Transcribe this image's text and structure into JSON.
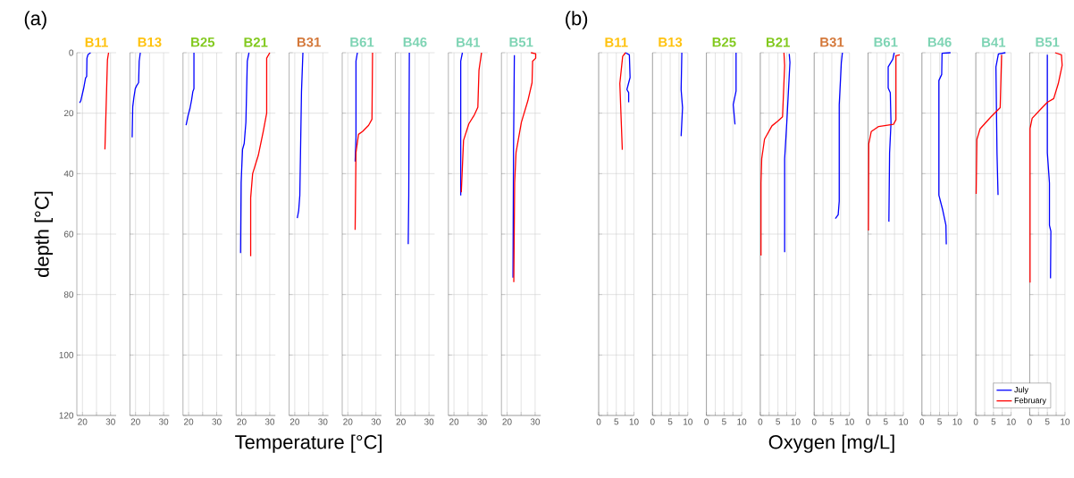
{
  "chart_data": [
    {
      "type": "line",
      "title": "B11",
      "ylabel": "depth [°C]",
      "annotations": [
        "(a)"
      ],
      "xlim": [
        18,
        32
      ],
      "xticks": [
        20,
        30
      ],
      "ylim": [
        120,
        0
      ],
      "yticks": [
        0,
        20,
        40,
        60,
        80,
        100,
        120
      ],
      "grid": true,
      "series": [
        {
          "color": "#0000ff",
          "x": [
            22.9,
            22.0,
            21.6,
            21.5,
            21.1,
            20.4,
            19.4,
            19.0
          ],
          "values": [
            0,
            0.6,
            1.8,
            7.9,
            8.4,
            11.9,
            15.9,
            16.6
          ]
        },
        {
          "color": "#ff0000",
          "x": [
            29.3,
            28.9,
            28.0
          ],
          "values": [
            0,
            2.3,
            32
          ]
        }
      ]
    },
    {
      "type": "line",
      "title": "B13",
      "xlim": [
        18,
        32
      ],
      "xticks": [
        20,
        30
      ],
      "ylim": [
        120,
        0
      ],
      "yticks": [
        0,
        20,
        40,
        60,
        80,
        100,
        120
      ],
      "grid": true,
      "tick_labels": "x",
      "series": [
        {
          "color": "#0000ff",
          "x": [
            21.7,
            21.3,
            21.1,
            20.4,
            19.9,
            19.4,
            19.0,
            18.8
          ],
          "values": [
            0,
            2.8,
            9.9,
            10.9,
            11.9,
            14.9,
            17.9,
            28
          ]
        }
      ]
    },
    {
      "type": "line",
      "title": "B25",
      "xlim": [
        18,
        32
      ],
      "xticks": [
        20,
        30
      ],
      "ylim": [
        120,
        0
      ],
      "yticks": [
        0,
        20,
        40,
        60,
        80,
        100,
        120
      ],
      "grid": true,
      "tick_labels": "x",
      "series": [
        {
          "color": "#0000ff",
          "x": [
            21.9,
            21.9,
            21.5,
            21.1,
            20.5,
            19.8,
            19.1
          ],
          "values": [
            0,
            11.9,
            12.9,
            15.4,
            18.4,
            20.8,
            24
          ]
        }
      ]
    },
    {
      "type": "line",
      "title": "B21",
      "xlim": [
        18,
        32
      ],
      "xticks": [
        20,
        30
      ],
      "ylim": [
        120,
        0
      ],
      "yticks": [
        0,
        20,
        40,
        60,
        80,
        100,
        120
      ],
      "grid": true,
      "tick_labels": "x",
      "series": [
        {
          "color": "#0000ff",
          "x": [
            22.6,
            22.0,
            21.5,
            20.9,
            20.3,
            19.8,
            19.6
          ],
          "values": [
            0,
            2.8,
            23,
            30,
            32,
            43,
            66.3
          ]
        },
        {
          "color": "#ff0000",
          "x": [
            30.0,
            28.9,
            28.9,
            27.7,
            25.9,
            23.9,
            23.2,
            23.2
          ],
          "values": [
            0,
            1.8,
            20,
            26,
            34,
            40,
            48,
            67.3
          ]
        }
      ]
    },
    {
      "type": "line",
      "title": "B31",
      "xlabel": "Temperature [°C]",
      "xlim": [
        18,
        32
      ],
      "xticks": [
        20,
        30
      ],
      "ylim": [
        120,
        0
      ],
      "yticks": [
        0,
        20,
        40,
        60,
        80,
        100,
        120
      ],
      "grid": true,
      "tick_labels": "x",
      "series": [
        {
          "color": "#0000ff",
          "x": [
            22.9,
            22.4,
            21.8,
            21.4,
            20.9
          ],
          "values": [
            0,
            12.9,
            47.2,
            52.2,
            54.7
          ]
        }
      ]
    },
    {
      "type": "line",
      "title": "B61",
      "xlim": [
        18,
        32
      ],
      "xticks": [
        20,
        30
      ],
      "ylim": [
        120,
        0
      ],
      "yticks": [
        0,
        20,
        40,
        60,
        80,
        100,
        120
      ],
      "grid": true,
      "tick_labels": "x",
      "series": [
        {
          "color": "#0000ff",
          "x": [
            23.4,
            22.9,
            22.9,
            22.6
          ],
          "values": [
            0,
            2.8,
            28,
            36
          ]
        },
        {
          "color": "#ff0000",
          "x": [
            28.8,
            28.6,
            27.4,
            25.3,
            23.8,
            22.9,
            22.6
          ],
          "values": [
            0,
            22,
            24,
            26,
            27,
            33,
            58.6
          ]
        }
      ]
    },
    {
      "type": "line",
      "title": "B46",
      "xlim": [
        18,
        32
      ],
      "xticks": [
        20,
        30
      ],
      "ylim": [
        120,
        0
      ],
      "yticks": [
        0,
        20,
        40,
        60,
        80,
        100,
        120
      ],
      "grid": true,
      "tick_labels": "x",
      "series": [
        {
          "color": "#0000ff",
          "x": [
            23.0,
            22.8,
            22.6
          ],
          "values": [
            0,
            47,
            63.3
          ]
        }
      ]
    },
    {
      "type": "line",
      "title": "B41",
      "xlim": [
        18,
        32
      ],
      "xticks": [
        20,
        30
      ],
      "ylim": [
        120,
        0
      ],
      "yticks": [
        0,
        20,
        40,
        60,
        80,
        100,
        120
      ],
      "grid": true,
      "tick_labels": "x",
      "series": [
        {
          "color": "#0000ff",
          "x": [
            23.0,
            22.4,
            22.4
          ],
          "values": [
            0,
            2.8,
            47.2
          ]
        },
        {
          "color": "#ff0000",
          "x": [
            29.8,
            28.9,
            28.5,
            27.3,
            25.3,
            23.4,
            22.6
          ],
          "values": [
            0,
            5.8,
            18,
            20.5,
            23.5,
            29,
            46.2
          ]
        }
      ]
    },
    {
      "type": "line",
      "title": "B51",
      "xlim": [
        18,
        32
      ],
      "xticks": [
        20,
        30
      ],
      "ylim": [
        120,
        0
      ],
      "yticks": [
        0,
        20,
        40,
        60,
        80,
        100,
        120
      ],
      "grid": true,
      "tick_labels": "x",
      "series": [
        {
          "color": "#0000ff",
          "x": [
            22.6,
            22.3,
            22.1
          ],
          "values": [
            0.8,
            33,
            74.4
          ]
        },
        {
          "color": "#ff0000",
          "x": [
            28.5,
            30.2,
            30.2,
            29.1,
            28.9,
            27.4,
            25.1,
            23.2,
            22.7,
            22.4
          ],
          "values": [
            0,
            0.3,
            1.8,
            2.8,
            9.9,
            15.9,
            23,
            33,
            43,
            75.9
          ]
        }
      ]
    },
    {
      "type": "line",
      "title": "B11",
      "annotations": [
        "(b)"
      ],
      "xlim": [
        0,
        10
      ],
      "xticks": [
        0,
        5,
        10
      ],
      "ylim": [
        120,
        0
      ],
      "yticks": [
        0,
        20,
        40,
        60,
        80,
        100,
        120
      ],
      "grid": true,
      "tick_labels": "x",
      "series": [
        {
          "color": "#0000ff",
          "x": [
            7.6,
            8.7,
            8.9,
            8.0,
            8.5,
            8.5
          ],
          "values": [
            0,
            0.7,
            8.2,
            12.2,
            13.2,
            16.4
          ]
        },
        {
          "color": "#ff0000",
          "x": [
            7.6,
            6.8,
            6.0,
            6.7
          ],
          "values": [
            0,
            1.2,
            10.2,
            32.1
          ]
        }
      ]
    },
    {
      "type": "line",
      "title": "B13",
      "xlim": [
        0,
        10
      ],
      "xticks": [
        0,
        5,
        10
      ],
      "ylim": [
        120,
        0
      ],
      "yticks": [
        0,
        20,
        40,
        60,
        80,
        100,
        120
      ],
      "grid": true,
      "tick_labels": "x",
      "series": [
        {
          "color": "#0000ff",
          "x": [
            8.3,
            8.1,
            8.5,
            8.1
          ],
          "values": [
            0,
            12.2,
            18.2,
            27.6
          ]
        }
      ]
    },
    {
      "type": "line",
      "title": "B25",
      "xlim": [
        0,
        10
      ],
      "xticks": [
        0,
        5,
        10
      ],
      "ylim": [
        120,
        0
      ],
      "yticks": [
        0,
        20,
        40,
        60,
        80,
        100,
        120
      ],
      "grid": true,
      "tick_labels": "x",
      "series": [
        {
          "color": "#0000ff",
          "x": [
            8.4,
            8.4,
            7.6,
            8.1
          ],
          "values": [
            0,
            12.7,
            17.2,
            23.7
          ]
        }
      ]
    },
    {
      "type": "line",
      "title": "B21",
      "xlim": [
        0,
        10
      ],
      "xticks": [
        0,
        5,
        10
      ],
      "ylim": [
        120,
        0
      ],
      "yticks": [
        0,
        20,
        40,
        60,
        80,
        100,
        120
      ],
      "grid": true,
      "tick_labels": "x",
      "series": [
        {
          "color": "#0000ff",
          "x": [
            8.2,
            8.4,
            7.5,
            6.9,
            6.9
          ],
          "values": [
            0.4,
            3.2,
            23.2,
            35.1,
            66
          ]
        },
        {
          "color": "#ff0000",
          "x": [
            6.7,
            6.9,
            6.3,
            4.9,
            3.3,
            1.2,
            0.4,
            0.2,
            0.2
          ],
          "values": [
            0,
            4.2,
            21.2,
            22.7,
            24.2,
            28.6,
            35.1,
            43.1,
            67.1
          ]
        }
      ]
    },
    {
      "type": "line",
      "title": "B31",
      "xlabel": "Oxygen [mg/L]",
      "xlim": [
        0,
        10
      ],
      "xticks": [
        0,
        5,
        10
      ],
      "ylim": [
        120,
        0
      ],
      "yticks": [
        0,
        20,
        40,
        60,
        80,
        100,
        120
      ],
      "grid": true,
      "tick_labels": "x",
      "series": [
        {
          "color": "#0000ff",
          "x": [
            8.0,
            7.7,
            7.1,
            7.1,
            6.8,
            6.0
          ],
          "values": [
            0,
            3.2,
            17.2,
            49.1,
            53.6,
            54.9
          ]
        }
      ]
    },
    {
      "type": "line",
      "title": "B61",
      "xlim": [
        0,
        10
      ],
      "xticks": [
        0,
        5,
        10
      ],
      "ylim": [
        120,
        0
      ],
      "yticks": [
        0,
        20,
        40,
        60,
        80,
        100,
        120
      ],
      "grid": true,
      "tick_labels": "x",
      "series": [
        {
          "color": "#0000ff",
          "x": [
            7.4,
            7.0,
            5.7,
            5.7,
            6.3,
            6.5,
            6.1,
            5.9
          ],
          "values": [
            0,
            2.2,
            4.7,
            11.7,
            13.2,
            23.2,
            33.1,
            55.9
          ]
        },
        {
          "color": "#ff0000",
          "x": [
            9.0,
            7.9,
            7.9,
            7.2,
            3.0,
            0.9,
            0.2,
            0.1
          ],
          "values": [
            0.7,
            1,
            22.2,
            23.7,
            24.4,
            26.1,
            30.1,
            58.8
          ]
        }
      ]
    },
    {
      "type": "line",
      "title": "B46",
      "xlim": [
        0,
        10
      ],
      "xticks": [
        0,
        5,
        10
      ],
      "ylim": [
        120,
        0
      ],
      "yticks": [
        0,
        20,
        40,
        60,
        80,
        100,
        120
      ],
      "grid": true,
      "tick_labels": "x",
      "series": [
        {
          "color": "#0000ff",
          "x": [
            8.1,
            5.7,
            5.6,
            4.8,
            4.8,
            5.9,
            6.8,
            6.9
          ],
          "values": [
            0,
            0.2,
            7.2,
            9.2,
            47.1,
            52.1,
            57.1,
            63.4
          ]
        }
      ]
    },
    {
      "type": "line",
      "title": "B41",
      "xlim": [
        0,
        10
      ],
      "xticks": [
        0,
        5,
        10
      ],
      "ylim": [
        120,
        0
      ],
      "yticks": [
        0,
        20,
        40,
        60,
        80,
        100,
        120
      ],
      "grid": true,
      "tick_labels": "x",
      "series": [
        {
          "color": "#0000ff",
          "x": [
            8.4,
            6.4,
            5.7,
            6.0,
            6.3
          ],
          "values": [
            0,
            0.4,
            4.7,
            33.1,
            47.1
          ]
        },
        {
          "color": "#ff0000",
          "x": [
            7.3,
            6.9,
            4.3,
            1.2,
            0.3,
            0.1
          ],
          "values": [
            0.7,
            18.2,
            21.2,
            25.2,
            28.7,
            46.7
          ]
        }
      ]
    },
    {
      "type": "line",
      "title": "B51",
      "xlim": [
        0,
        10
      ],
      "xticks": [
        0,
        5,
        10
      ],
      "ylim": [
        120,
        0
      ],
      "yticks": [
        0,
        20,
        40,
        60,
        80,
        100,
        120
      ],
      "grid": true,
      "tick_labels": "x",
      "legend": "bottom left",
      "series": [
        {
          "name": "July",
          "color": "#0000ff",
          "x": [
            5.0,
            5.0,
            5.6,
            5.6,
            6.0,
            5.9
          ],
          "values": [
            0.7,
            33.1,
            43.1,
            57.1,
            59.1,
            74.6
          ]
        },
        {
          "name": "February",
          "color": "#ff0000",
          "x": [
            7.2,
            9.0,
            9.2,
            8.1,
            6.8,
            5.0,
            3.1,
            0.7,
            0.1,
            0.1
          ],
          "values": [
            0,
            0.7,
            4.2,
            10.2,
            15.2,
            16.4,
            18.7,
            21.7,
            25.1,
            76
          ]
        }
      ]
    }
  ]
}
